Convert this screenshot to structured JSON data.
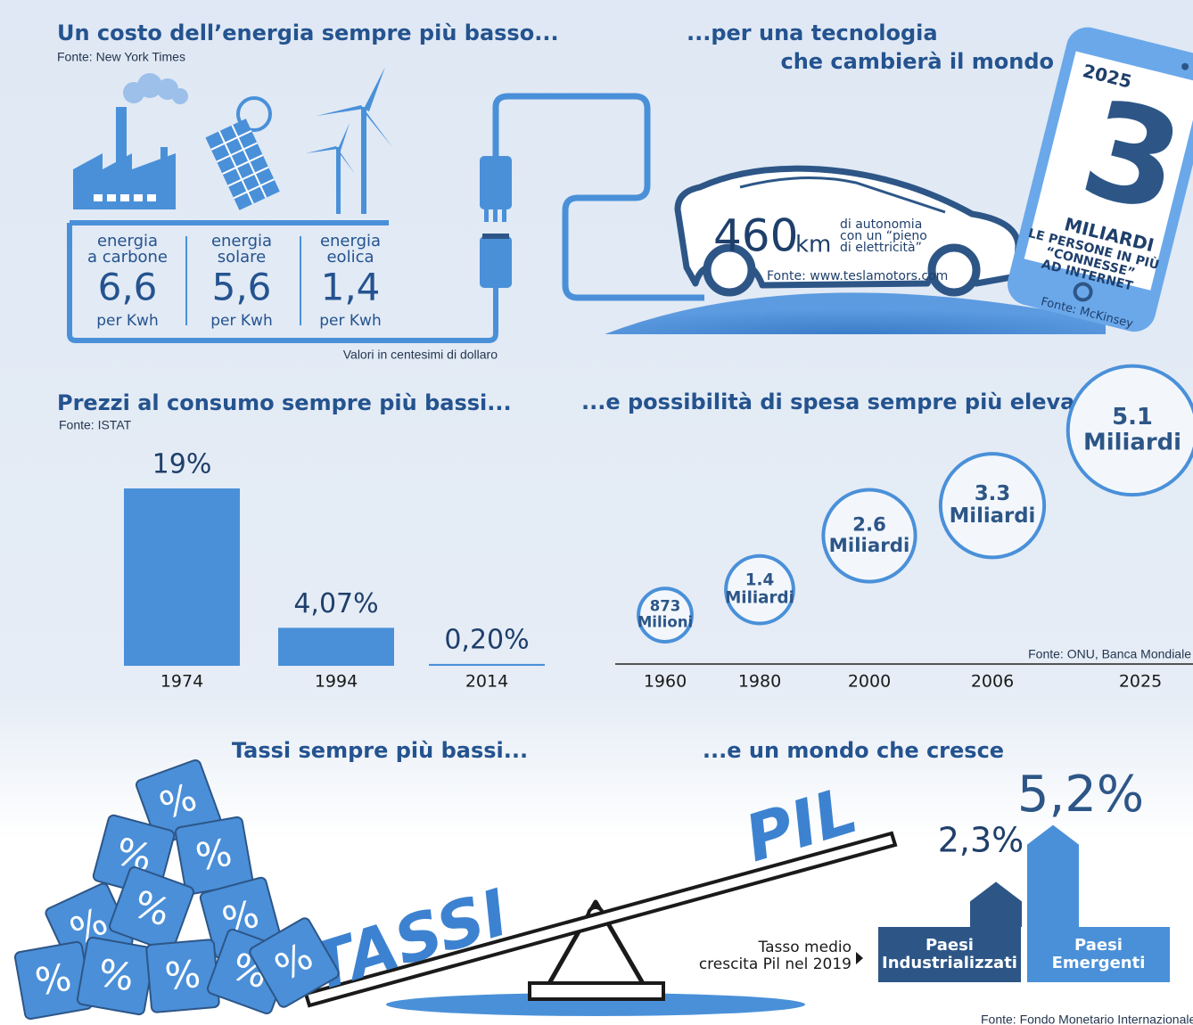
{
  "energy": {
    "title": "Un costo dell’energia sempre più basso...",
    "source": "Fonte: New York Times",
    "items": [
      {
        "label": [
          "energia",
          "a carbone"
        ],
        "value": "6,6",
        "unit": "per Kwh"
      },
      {
        "label": [
          "energia",
          "solare"
        ],
        "value": "5,6",
        "unit": "per Kwh"
      },
      {
        "label": [
          "energia",
          "eolica"
        ],
        "value": "1,4",
        "unit": "per Kwh"
      }
    ],
    "note": "Valori in centesimi di dollaro"
  },
  "tech": {
    "title": [
      "...per una tecnologia",
      "che cambierà il mondo"
    ],
    "range_value": "460",
    "range_unit": "km",
    "range_text": [
      "di autonomia",
      "con un “pieno",
      "di elettricità”"
    ],
    "source": "Fonte: www.teslamotors.com"
  },
  "phone": {
    "year": "2025",
    "number": "3",
    "unit": "MILIARDI",
    "text": [
      "LE PERSONE IN PIÙ",
      "“CONNESSE”",
      "AD INTERNET"
    ],
    "source": "Fonte: McKinsey"
  },
  "chart_data": [
    {
      "type": "bar",
      "title": "Prezzi al consumo sempre più bassi...",
      "source": "Fonte: ISTAT",
      "categories": [
        "1974",
        "1994",
        "2014"
      ],
      "values": [
        19,
        4.07,
        0.2
      ],
      "value_labels": [
        "19%",
        "4,07%",
        "0,20%"
      ],
      "color": "#4a90d9"
    },
    {
      "type": "bubble",
      "title": "...e possibilità di spesa sempre più elevata",
      "source": "Fonte: ONU, Banca Mondiale",
      "categories": [
        "1960",
        "1980",
        "2000",
        "2006",
        "2025"
      ],
      "values": [
        0.873,
        1.4,
        2.6,
        3.3,
        5.1
      ],
      "value_labels": [
        [
          "873",
          "Milioni"
        ],
        [
          "1.4",
          "Miliardi"
        ],
        [
          "2.6",
          "Miliardi"
        ],
        [
          "3.3",
          "Miliardi"
        ],
        [
          "5.1",
          "Miliardi"
        ]
      ],
      "color": "#4a90d9"
    },
    {
      "type": "arrow-bar",
      "title": "...e un mondo che cresce",
      "label": [
        "Tasso medio",
        "crescita Pil nel 2019"
      ],
      "source": "Fonte: Fondo Monetario Internazionale",
      "categories": [
        "Paesi Industrializzati",
        "Paesi Emergenti"
      ],
      "category_lines": [
        [
          "Paesi",
          "Industrializzati"
        ],
        [
          "Paesi",
          "Emergenti"
        ]
      ],
      "values": [
        2.3,
        5.2
      ],
      "value_labels": [
        "2,3%",
        "5,2%"
      ],
      "colors": [
        "#2d5687",
        "#4a90d9"
      ]
    }
  ],
  "rates": {
    "title": "Tassi sempre più bassi...",
    "left_word": "TASSI",
    "right_word": "PIL",
    "cube_symbol": "%"
  }
}
